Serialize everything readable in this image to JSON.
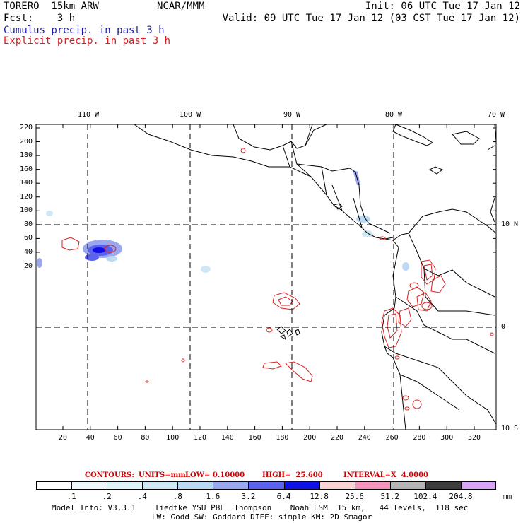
{
  "header": {
    "model": "TORERO  15km ARW",
    "org": "NCAR/MMM",
    "init": "Init: 06 UTC Tue 17 Jan 12",
    "fcst": "Fcst:    3 h",
    "valid": "Valid: 09 UTC Tue 17 Jan 12 (03 CST Tue 17 Jan 12)",
    "field1": "Cumulus precip. in past 3 h",
    "field2": "Explicit precip. in past 3 h",
    "field1_color": "#1a1aa6",
    "field2_color": "#d42020"
  },
  "map": {
    "lon_labels": [
      "110 W",
      "100 W",
      "90 W",
      "80 W",
      "70 W"
    ],
    "lat_labels": [
      "10 N",
      "0",
      "10 S"
    ],
    "y_ticks": [
      "220",
      "200",
      "180",
      "160",
      "140",
      "120",
      "100",
      "80",
      "60",
      "40",
      "20"
    ],
    "x_ticks": [
      "20",
      "40",
      "60",
      "80",
      "100",
      "120",
      "140",
      "160",
      "180",
      "200",
      "220",
      "240",
      "260",
      "280",
      "300",
      "320"
    ]
  },
  "contours": {
    "c_label": "CONTOURS:",
    "units": "UNITS=mm",
    "low": "LOW= 0.10000",
    "high": "HIGH=  25.600",
    "interval": "INTERVAL=X  4.0000",
    "color": "#cc0000"
  },
  "colorbar": {
    "labels": [
      ".1",
      ".2",
      ".4",
      ".8",
      "1.6",
      "3.2",
      "6.4",
      "12.8",
      "25.6",
      "51.2",
      "102.4",
      "204.8"
    ],
    "unit": "mm",
    "colors": [
      "#ffffff",
      "#eef8fb",
      "#dff3f8",
      "#cfe8f5",
      "#bcd9f4",
      "#9aa8f0",
      "#5a62ee",
      "#1010e6",
      "#f8d4d4",
      "#f595bd",
      "#b4b4b4",
      "#3c3c3c",
      "#d6a6f5"
    ]
  },
  "footer": {
    "line1": "Model Info: V3.3.1    Tiedtke YSU PBL  Thompson    Noah LSM  15 km,   44 levels,  118 sec",
    "line2": "LW: Godd SW: Goddard DIFF: simple KM: 2D Smagor"
  }
}
